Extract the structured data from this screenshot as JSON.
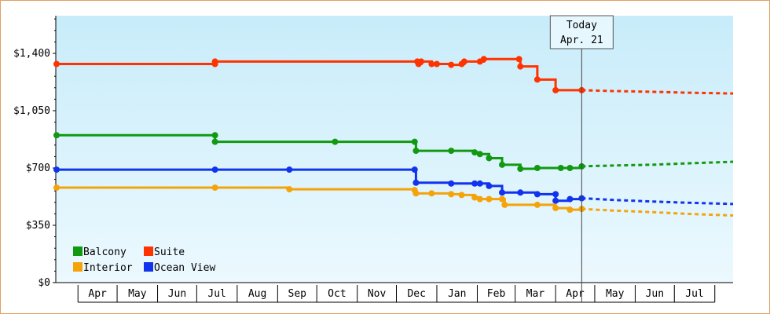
{
  "chart_data": {
    "type": "line",
    "title": "",
    "xlabel": "",
    "ylabel": "",
    "x_axis": {
      "type": "date",
      "range": [
        "2015-03-15",
        "2016-08-15"
      ],
      "month_labels": [
        {
          "label": "Apr",
          "start": "2015-04-01",
          "end": "2015-05-01"
        },
        {
          "label": "May",
          "start": "2015-05-01",
          "end": "2015-06-01"
        },
        {
          "label": "Jun",
          "start": "2015-06-01",
          "end": "2015-07-01"
        },
        {
          "label": "Jul",
          "start": "2015-07-01",
          "end": "2015-08-01"
        },
        {
          "label": "Aug",
          "start": "2015-08-01",
          "end": "2015-09-01"
        },
        {
          "label": "Sep",
          "start": "2015-09-01",
          "end": "2015-10-01"
        },
        {
          "label": "Oct",
          "start": "2015-10-01",
          "end": "2015-11-01"
        },
        {
          "label": "Nov",
          "start": "2015-11-01",
          "end": "2015-12-01"
        },
        {
          "label": "Dec",
          "start": "2015-12-01",
          "end": "2016-01-01"
        },
        {
          "label": "Jan",
          "start": "2016-01-01",
          "end": "2016-02-01"
        },
        {
          "label": "Feb",
          "start": "2016-02-01",
          "end": "2016-03-01"
        },
        {
          "label": "Mar",
          "start": "2016-03-01",
          "end": "2016-04-01"
        },
        {
          "label": "Apr",
          "start": "2016-04-01",
          "end": "2016-05-01"
        },
        {
          "label": "May",
          "start": "2016-05-01",
          "end": "2016-06-01"
        },
        {
          "label": "Jun",
          "start": "2016-06-01",
          "end": "2016-07-01"
        },
        {
          "label": "Jul",
          "start": "2016-07-01",
          "end": "2016-08-01"
        }
      ]
    },
    "y_axis": {
      "range": [
        0,
        1630
      ],
      "ticks": [
        {
          "value": 0,
          "label": "$0"
        },
        {
          "value": 350,
          "label": "$350"
        },
        {
          "value": 700,
          "label": "$700"
        },
        {
          "value": 1050,
          "label": "$1,050"
        },
        {
          "value": 1400,
          "label": "$1,400"
        }
      ]
    },
    "today": {
      "date": "2016-04-21",
      "label_line1": "Today",
      "label_line2": "Apr. 21"
    },
    "background_gradient": [
      "#c8ecfa",
      "#ecf9fe"
    ],
    "legend_placement": "bottom-left",
    "legend": [
      {
        "label": "Balcony",
        "color": "#119911"
      },
      {
        "label": "Suite",
        "color": "#ff3300"
      },
      {
        "label": "Interior",
        "color": "#f5a30a"
      },
      {
        "label": "Ocean View",
        "color": "#1133ee"
      }
    ],
    "series": [
      {
        "name": "Suite",
        "color": "#ff3300",
        "points": [
          [
            "2015-03-15",
            1335
          ],
          [
            "2015-07-15",
            1335
          ],
          [
            "2015-07-15",
            1350
          ],
          [
            "2015-12-17",
            1350
          ],
          [
            "2015-12-18",
            1335
          ],
          [
            "2015-12-20",
            1350
          ],
          [
            "2015-12-28",
            1335
          ],
          [
            "2016-01-01",
            1335
          ],
          [
            "2016-01-12",
            1330
          ],
          [
            "2016-01-20",
            1335
          ],
          [
            "2016-01-22",
            1350
          ],
          [
            "2016-02-03",
            1350
          ],
          [
            "2016-02-06",
            1365
          ],
          [
            "2016-03-04",
            1365
          ],
          [
            "2016-03-05",
            1320
          ],
          [
            "2016-03-18",
            1240
          ],
          [
            "2016-04-01",
            1175
          ],
          [
            "2016-04-21",
            1175
          ]
        ],
        "forecast": [
          [
            "2016-04-21",
            1175
          ],
          [
            "2016-05-15",
            1170
          ],
          [
            "2016-06-15",
            1165
          ],
          [
            "2016-07-10",
            1160
          ],
          [
            "2016-08-15",
            1155
          ]
        ]
      },
      {
        "name": "Balcony",
        "color": "#119911",
        "points": [
          [
            "2015-03-15",
            900
          ],
          [
            "2015-07-15",
            900
          ],
          [
            "2015-07-15",
            860
          ],
          [
            "2015-10-15",
            860
          ],
          [
            "2015-12-15",
            860
          ],
          [
            "2015-12-16",
            805
          ],
          [
            "2016-01-12",
            805
          ],
          [
            "2016-01-30",
            795
          ],
          [
            "2016-02-03",
            785
          ],
          [
            "2016-02-10",
            760
          ],
          [
            "2016-02-20",
            720
          ],
          [
            "2016-03-05",
            695
          ],
          [
            "2016-03-18",
            700
          ],
          [
            "2016-04-05",
            700
          ],
          [
            "2016-04-12",
            700
          ],
          [
            "2016-04-21",
            710
          ]
        ],
        "forecast": [
          [
            "2016-04-21",
            710
          ],
          [
            "2016-05-15",
            715
          ],
          [
            "2016-06-15",
            720
          ],
          [
            "2016-07-10",
            728
          ],
          [
            "2016-08-15",
            738
          ]
        ]
      },
      {
        "name": "Ocean View",
        "color": "#1133ee",
        "points": [
          [
            "2015-03-15",
            690
          ],
          [
            "2015-07-15",
            690
          ],
          [
            "2015-09-10",
            690
          ],
          [
            "2015-12-15",
            690
          ],
          [
            "2015-12-16",
            610
          ],
          [
            "2016-01-12",
            605
          ],
          [
            "2016-01-30",
            605
          ],
          [
            "2016-02-03",
            605
          ],
          [
            "2016-02-10",
            590
          ],
          [
            "2016-02-20",
            550
          ],
          [
            "2016-03-05",
            550
          ],
          [
            "2016-03-18",
            540
          ],
          [
            "2016-04-01",
            540
          ],
          [
            "2016-04-01",
            500
          ],
          [
            "2016-04-12",
            510
          ],
          [
            "2016-04-21",
            515
          ]
        ],
        "forecast": [
          [
            "2016-04-21",
            515
          ],
          [
            "2016-05-15",
            505
          ],
          [
            "2016-06-15",
            495
          ],
          [
            "2016-07-10",
            488
          ],
          [
            "2016-08-15",
            480
          ]
        ]
      },
      {
        "name": "Interior",
        "color": "#f5a30a",
        "points": [
          [
            "2015-03-15",
            580
          ],
          [
            "2015-07-15",
            580
          ],
          [
            "2015-09-10",
            570
          ],
          [
            "2015-12-15",
            565
          ],
          [
            "2015-12-16",
            545
          ],
          [
            "2015-12-28",
            545
          ],
          [
            "2016-01-12",
            540
          ],
          [
            "2016-01-20",
            535
          ],
          [
            "2016-01-30",
            520
          ],
          [
            "2016-02-03",
            510
          ],
          [
            "2016-02-10",
            510
          ],
          [
            "2016-02-20",
            510
          ],
          [
            "2016-02-22",
            475
          ],
          [
            "2016-03-18",
            475
          ],
          [
            "2016-04-01",
            455
          ],
          [
            "2016-04-12",
            445
          ],
          [
            "2016-04-21",
            450
          ]
        ],
        "forecast": [
          [
            "2016-04-21",
            450
          ],
          [
            "2016-05-15",
            440
          ],
          [
            "2016-06-15",
            430
          ],
          [
            "2016-07-10",
            420
          ],
          [
            "2016-08-15",
            410
          ]
        ]
      }
    ]
  }
}
